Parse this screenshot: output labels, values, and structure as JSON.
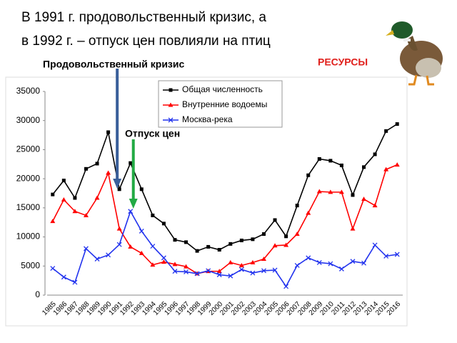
{
  "slide": {
    "title_lines": [
      "В 1991 г. продовольственный кризис, а",
      "в 1992 г. – отпуск цен повлияли на птиц"
    ],
    "resources": "РЕСУРСЫ"
  },
  "chart_data": {
    "type": "line",
    "annotations": [
      "Продовольственный кризис",
      "Отпуск цен"
    ],
    "categories": [
      "1985",
      "1986",
      "1987",
      "1988",
      "1989",
      "1990",
      "1991",
      "1992",
      "1993",
      "1994",
      "1995",
      "1996",
      "1997",
      "1998",
      "1999",
      "2000",
      "2001",
      "2002",
      "2003",
      "2004",
      "2005",
      "2006",
      "2007",
      "2008",
      "2009",
      "2010",
      "2011",
      "2012",
      "2013",
      "2014",
      "2015",
      "2016"
    ],
    "series": [
      {
        "name": "Общая численность",
        "color": "#000000",
        "marker": "square",
        "values": [
          17300,
          19700,
          16700,
          21700,
          22600,
          28000,
          18200,
          22700,
          18200,
          13700,
          12300,
          9500,
          9100,
          7600,
          8300,
          7800,
          8800,
          9400,
          9600,
          10500,
          12900,
          10100,
          15400,
          20600,
          23400,
          23100,
          22300,
          17200,
          22000,
          24200,
          28200,
          29400
        ]
      },
      {
        "name": "Внутренние водоемы",
        "color": "#ff0000",
        "marker": "triangle",
        "values": [
          12700,
          16400,
          14400,
          13700,
          16700,
          21000,
          11400,
          8300,
          7200,
          5200,
          5700,
          5300,
          4900,
          3700,
          4100,
          4100,
          5600,
          5100,
          5600,
          6200,
          8500,
          8600,
          10500,
          14100,
          17800,
          17700,
          17700,
          11400,
          16500,
          15400,
          21600,
          22400
        ]
      },
      {
        "name": "Москва-река",
        "color": "#2233ee",
        "marker": "x",
        "values": [
          4600,
          3100,
          2200,
          8000,
          6200,
          6900,
          8700,
          14400,
          11000,
          8400,
          6400,
          4100,
          4000,
          3700,
          4200,
          3500,
          3300,
          4400,
          3800,
          4200,
          4300,
          1500,
          5100,
          6400,
          5600,
          5400,
          4500,
          5800,
          5500,
          8600,
          6700,
          7000
        ]
      }
    ],
    "ylim": [
      0,
      35000
    ],
    "yticks": [
      0,
      5000,
      10000,
      15000,
      20000,
      25000,
      30000,
      35000
    ],
    "grid": false
  }
}
